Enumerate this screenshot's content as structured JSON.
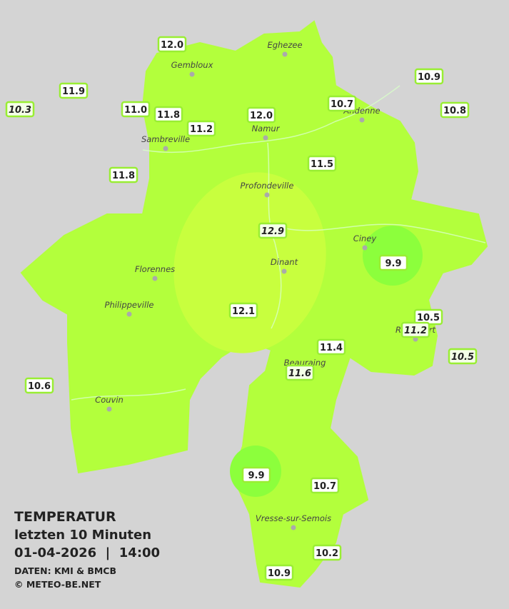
{
  "legend": {
    "title": "TEMPERATUR",
    "period": "letzten 10 Minuten",
    "datetime": "01-04-2026  |  14:00",
    "source": "DATEN: KMI & BMCB",
    "copyright": "© METEO-BE.NET"
  },
  "cities": [
    "Eghezee",
    "Gembloux",
    "Andenne",
    "Namur",
    "Sambreville",
    "Profondeville",
    "Ciney",
    "Florennes",
    "Dinant",
    "Philippeville",
    "Rochefort",
    "Beauraing",
    "Couvin",
    "Vresse-sur-Semois"
  ],
  "stations": [
    "12.0",
    "10.9",
    "11.9",
    "10.3",
    "11.0",
    "11.8",
    "11.2",
    "12.0",
    "10.7",
    "10.8",
    "11.5",
    "11.8",
    "12.9",
    "9.9",
    "12.1",
    "10.5",
    "11.2",
    "11.4",
    "10.5",
    "11.6",
    "10.6",
    "9.9",
    "10.7",
    "10.2",
    "10.9"
  ]
}
